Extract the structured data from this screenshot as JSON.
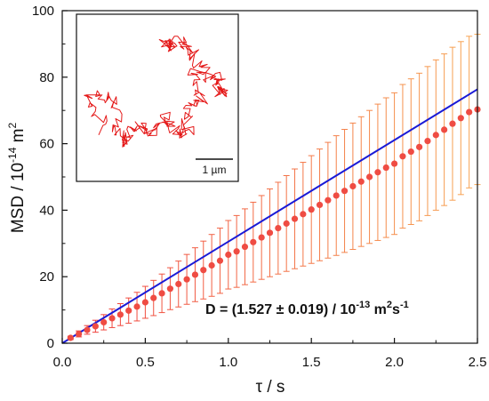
{
  "chart_data": {
    "type": "scatter",
    "xlabel": "τ / s",
    "ylabel_parts": [
      "MSD / 10",
      "-14",
      " m",
      "2"
    ],
    "xlim": [
      0,
      2.5
    ],
    "ylim": [
      0,
      100
    ],
    "xticks": [
      "0.0",
      "0.5",
      "1.0",
      "1.5",
      "2.0",
      "2.5"
    ],
    "yticks": [
      "0",
      "20",
      "40",
      "60",
      "80",
      "100"
    ],
    "grid": false,
    "annotation_parts": [
      "D = (1.527 ± 0.019) / 10",
      "-13",
      " m",
      "2",
      "s",
      "-1"
    ],
    "fit_line": {
      "x": [
        0.0,
        2.5
      ],
      "y": [
        0.0,
        76.35
      ],
      "color": "#1a1ad6"
    },
    "series": [
      {
        "marker_color": "#ef4c43",
        "errorbar_color_start": "#ef3b3b",
        "errorbar_color_end": "#f7a552",
        "x": [
          0.05,
          0.1,
          0.15,
          0.2,
          0.25,
          0.3,
          0.35,
          0.4,
          0.45,
          0.5,
          0.55,
          0.6,
          0.65,
          0.7,
          0.75,
          0.8,
          0.85,
          0.9,
          0.95,
          1.0,
          1.05,
          1.1,
          1.15,
          1.2,
          1.25,
          1.3,
          1.35,
          1.4,
          1.45,
          1.5,
          1.55,
          1.6,
          1.65,
          1.7,
          1.75,
          1.8,
          1.85,
          1.9,
          1.95,
          2.0,
          2.05,
          2.1,
          2.15,
          2.2,
          2.25,
          2.3,
          2.35,
          2.4,
          2.45,
          2.5
        ],
        "y": [
          1.6,
          2.8,
          4.0,
          5.1,
          6.3,
          7.5,
          8.6,
          9.8,
          11.0,
          12.3,
          13.6,
          15.0,
          16.4,
          17.8,
          19.2,
          20.6,
          22.0,
          23.4,
          24.8,
          26.6,
          27.6,
          29.0,
          30.4,
          31.8,
          33.2,
          34.6,
          36.0,
          37.4,
          38.8,
          40.2,
          41.6,
          43.0,
          44.4,
          45.8,
          47.2,
          48.6,
          50.0,
          51.4,
          52.8,
          54.0,
          56.2,
          57.6,
          59.0,
          60.8,
          62.6,
          64.2,
          66.0,
          67.7,
          69.5,
          70.3
        ],
        "err": [
          0.5,
          0.9,
          1.3,
          1.8,
          2.3,
          2.8,
          3.3,
          3.8,
          4.3,
          4.8,
          5.3,
          5.8,
          6.3,
          6.9,
          7.5,
          8.1,
          8.7,
          9.3,
          9.8,
          10.3,
          10.8,
          11.4,
          12.0,
          12.6,
          13.2,
          13.8,
          14.4,
          15.0,
          15.6,
          16.2,
          16.8,
          17.4,
          18.0,
          18.5,
          19.0,
          19.5,
          20.0,
          20.5,
          21.0,
          21.3,
          21.6,
          21.9,
          22.2,
          22.4,
          22.6,
          22.8,
          23.0,
          23.0,
          22.8,
          22.6
        ]
      }
    ],
    "inset": {
      "scale_bar_label": "1 µm",
      "trajectory_color": "#e41818"
    }
  }
}
